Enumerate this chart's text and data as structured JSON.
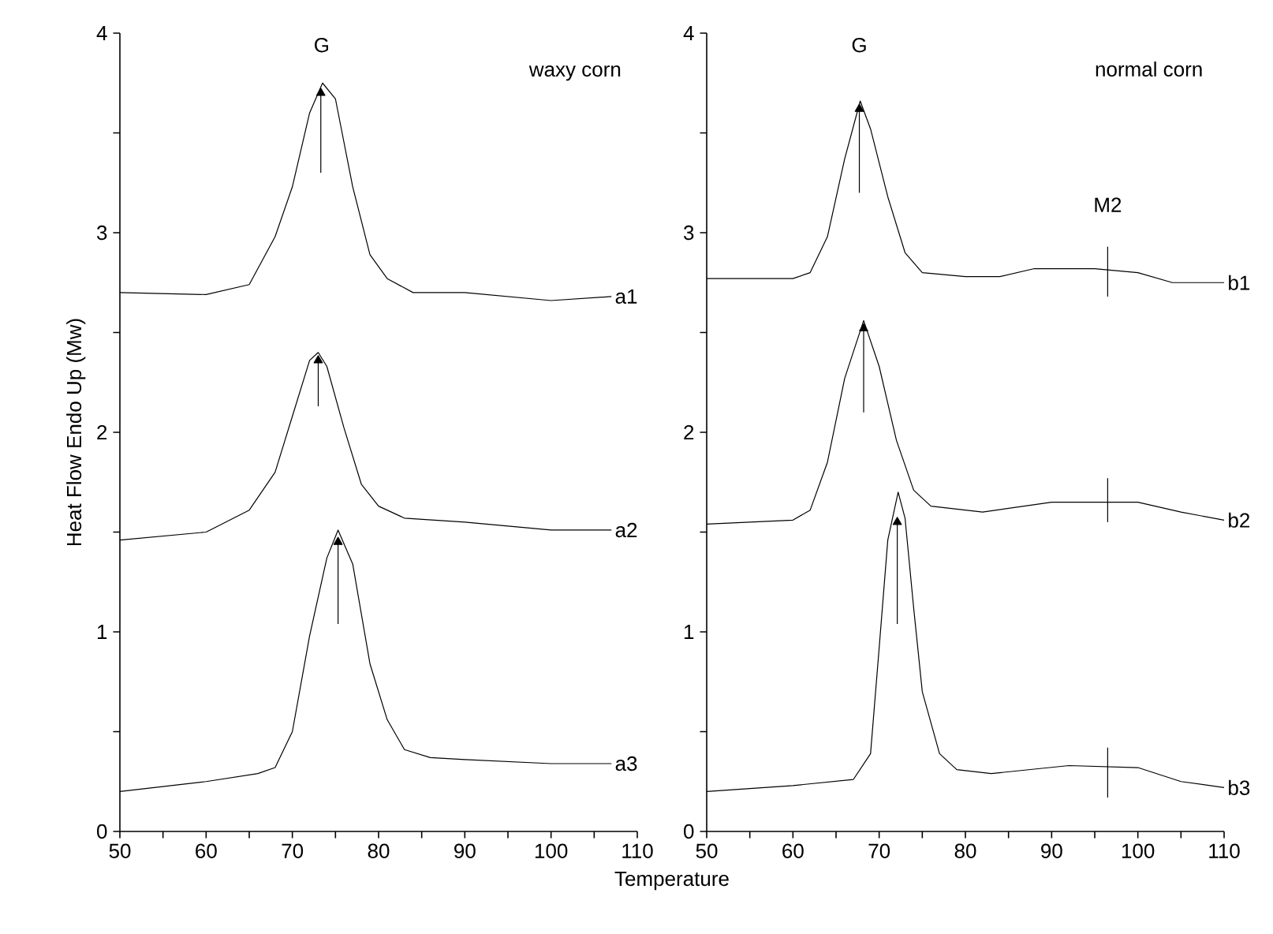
{
  "chart_data": [
    {
      "type": "line",
      "ylabel": "Heat Flow Endo Up (Mw)",
      "xlabel": "Temperature",
      "xlim": [
        50,
        110
      ],
      "ylim": [
        0,
        4
      ],
      "xticks": [
        50,
        {
          "value": 55,
          "label": null
        },
        60,
        {
          "value": 65,
          "label": null
        },
        70,
        {
          "value": 75,
          "label": null
        },
        80,
        {
          "value": 85,
          "label": null
        },
        90,
        {
          "value": 95,
          "label": null
        },
        100,
        {
          "value": 105,
          "label": null
        },
        110
      ],
      "yticks": [
        0,
        {
          "value": 0.5,
          "label": null
        },
        1,
        {
          "value": 1.5,
          "label": null
        },
        2,
        {
          "value": 2.5,
          "label": null
        },
        3,
        {
          "value": 3.5,
          "label": null
        },
        4
      ],
      "annotations": [
        "G",
        "waxy corn"
      ],
      "series": [
        {
          "name": "a1",
          "color": "#000000",
          "x": [
            50,
            60,
            65,
            68,
            70,
            72,
            73.5,
            75,
            77,
            79,
            81,
            84,
            90,
            100,
            107
          ],
          "values": [
            2.7,
            2.69,
            2.74,
            2.98,
            3.23,
            3.6,
            3.75,
            3.67,
            3.23,
            2.89,
            2.77,
            2.7,
            2.7,
            2.66,
            2.68
          ]
        },
        {
          "name": "a2",
          "color": "#000000",
          "x": [
            50,
            60,
            65,
            68,
            70,
            72,
            73,
            74,
            76,
            78,
            80,
            83,
            90,
            100,
            107
          ],
          "values": [
            1.46,
            1.5,
            1.61,
            1.8,
            2.08,
            2.36,
            2.4,
            2.33,
            2.02,
            1.74,
            1.63,
            1.57,
            1.55,
            1.51,
            1.51
          ]
        },
        {
          "name": "a3",
          "color": "#000000",
          "x": [
            50,
            60,
            66,
            68,
            70,
            72,
            74,
            75.3,
            77,
            79,
            81,
            83,
            86,
            90,
            100,
            107
          ],
          "values": [
            0.2,
            0.25,
            0.29,
            0.32,
            0.5,
            0.98,
            1.37,
            1.51,
            1.34,
            0.84,
            0.56,
            0.41,
            0.37,
            0.36,
            0.34,
            0.34
          ]
        },
        {
          "color": "#000000",
          "marker": "triangle",
          "x": [
            73.3,
            73.3
          ],
          "values": [
            3.3,
            3.7
          ]
        },
        {
          "color": "#000000",
          "marker": "triangle",
          "x": [
            73.0,
            73.0
          ],
          "values": [
            2.13,
            2.36
          ]
        },
        {
          "color": "#000000",
          "marker": "triangle",
          "x": [
            75.3,
            75.3
          ],
          "values": [
            1.04,
            1.45
          ]
        }
      ]
    },
    {
      "type": "line",
      "xlim": [
        50,
        110
      ],
      "ylim": [
        0,
        4
      ],
      "xticks": [
        50,
        {
          "value": 55,
          "label": null
        },
        60,
        {
          "value": 65,
          "label": null
        },
        70,
        {
          "value": 75,
          "label": null
        },
        80,
        {
          "value": 85,
          "label": null
        },
        90,
        {
          "value": 95,
          "label": null
        },
        100,
        {
          "value": 105,
          "label": null
        },
        110
      ],
      "yticks": [
        0,
        {
          "value": 0.5,
          "label": null
        },
        1,
        {
          "value": 1.5,
          "label": null
        },
        2,
        {
          "value": 2.5,
          "label": null
        },
        3,
        {
          "value": 3.5,
          "label": null
        },
        4
      ],
      "annotations": [
        "G",
        "normal corn",
        "M2"
      ],
      "series": [
        {
          "name": "b1",
          "color": "#000000",
          "x": [
            50,
            60,
            62,
            64,
            66,
            67.8,
            69,
            71,
            73,
            75,
            80,
            84,
            88,
            95,
            100,
            104,
            110
          ],
          "values": [
            2.77,
            2.77,
            2.8,
            2.98,
            3.37,
            3.66,
            3.52,
            3.18,
            2.9,
            2.8,
            2.78,
            2.78,
            2.82,
            2.82,
            2.8,
            2.75,
            2.75
          ]
        },
        {
          "name": "b2",
          "color": "#000000",
          "x": [
            50,
            60,
            62,
            64,
            66,
            68.2,
            70,
            72,
            74,
            76,
            82,
            90,
            96,
            100,
            105,
            110
          ],
          "values": [
            1.54,
            1.56,
            1.61,
            1.85,
            2.27,
            2.56,
            2.33,
            1.96,
            1.71,
            1.63,
            1.6,
            1.65,
            1.65,
            1.65,
            1.6,
            1.56
          ]
        },
        {
          "name": "b3",
          "color": "#000000",
          "x": [
            50,
            60,
            67,
            69,
            70,
            71,
            72.2,
            73,
            74,
            75,
            77,
            79,
            83,
            92,
            100,
            105,
            110
          ],
          "values": [
            0.2,
            0.23,
            0.26,
            0.39,
            0.92,
            1.46,
            1.7,
            1.57,
            1.12,
            0.7,
            0.39,
            0.31,
            0.29,
            0.33,
            0.32,
            0.25,
            0.22
          ]
        },
        {
          "color": "#000000",
          "marker": "triangle",
          "x": [
            67.7,
            67.7
          ],
          "values": [
            3.2,
            3.62
          ]
        },
        {
          "color": "#000000",
          "marker": "triangle",
          "x": [
            68.2,
            68.2
          ],
          "values": [
            2.1,
            2.52
          ]
        },
        {
          "color": "#000000",
          "marker": "triangle",
          "x": [
            72.1,
            72.1
          ],
          "values": [
            1.04,
            1.55
          ]
        },
        {
          "color": "#000000",
          "x": [
            96.5,
            96.5
          ],
          "values": [
            2.68,
            2.93
          ]
        },
        {
          "color": "#000000",
          "x": [
            96.5,
            96.5
          ],
          "values": [
            1.55,
            1.77
          ]
        },
        {
          "color": "#000000",
          "x": [
            96.5,
            96.5
          ],
          "values": [
            0.17,
            0.42
          ]
        }
      ]
    }
  ]
}
